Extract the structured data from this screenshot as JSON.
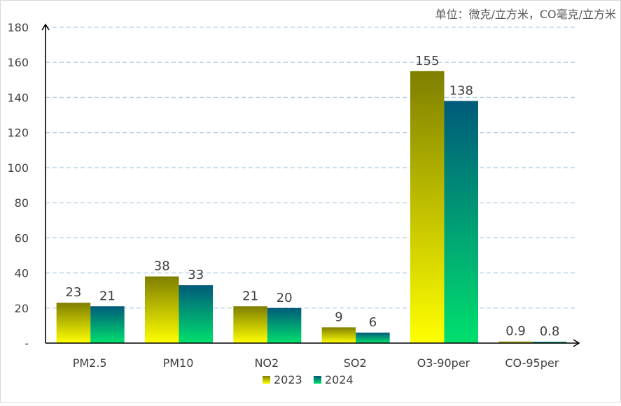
{
  "chart_data": {
    "type": "bar",
    "unit_note": "单位：微克/立方米，CO毫克/立方米",
    "categories": [
      "PM2.5",
      "PM10",
      "NO2",
      "SO2",
      "O3-90per",
      "CO-95per"
    ],
    "series": [
      {
        "name": "2023",
        "values": [
          23,
          38,
          21,
          9,
          155,
          0.9
        ],
        "labels": [
          "23",
          "38",
          "21",
          "9",
          "155",
          "0.9"
        ],
        "color_top": "#7f7f00",
        "color_bottom": "#ffff00"
      },
      {
        "name": "2024",
        "values": [
          21,
          33,
          20,
          6,
          138,
          0.8
        ],
        "labels": [
          "21",
          "33",
          "20",
          "6",
          "138",
          "0.8"
        ],
        "color_top": "#005a7a",
        "color_bottom": "#00e06e"
      }
    ],
    "ylim": [
      0,
      180
    ],
    "yticks": [
      0,
      20,
      40,
      60,
      80,
      100,
      120,
      140,
      160,
      180
    ],
    "ytick_labels": [
      "-",
      "20",
      "40",
      "60",
      "80",
      "100",
      "120",
      "140",
      "160",
      "180"
    ],
    "grid": true,
    "legend_position": "bottom"
  }
}
